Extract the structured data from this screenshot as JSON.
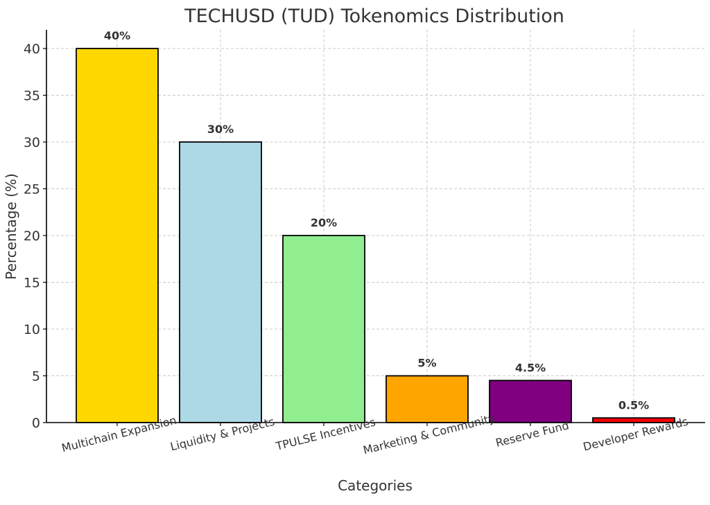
{
  "chart_data": {
    "type": "bar",
    "title": "TECHUSD (TUD) Tokenomics Distribution",
    "xlabel": "Categories",
    "ylabel": "Percentage (%)",
    "ylim": [
      0,
      42
    ],
    "yticks": [
      0,
      5,
      10,
      15,
      20,
      25,
      30,
      35,
      40
    ],
    "grid": true,
    "categories": [
      "Multichain Expansion",
      "Liquidity & Projects",
      "TPULSE Incentives",
      "Marketing & Community",
      "Reserve Fund",
      "Developer Rewards"
    ],
    "values": [
      40,
      30,
      20,
      5,
      4.5,
      0.5
    ],
    "data_labels": [
      "40%",
      "30%",
      "20%",
      "5%",
      "4.5%",
      "0.5%"
    ],
    "colors": [
      "#FFD700",
      "#ADD8E6",
      "#90EE90",
      "#FFA500",
      "#800080",
      "#FF0000"
    ]
  }
}
